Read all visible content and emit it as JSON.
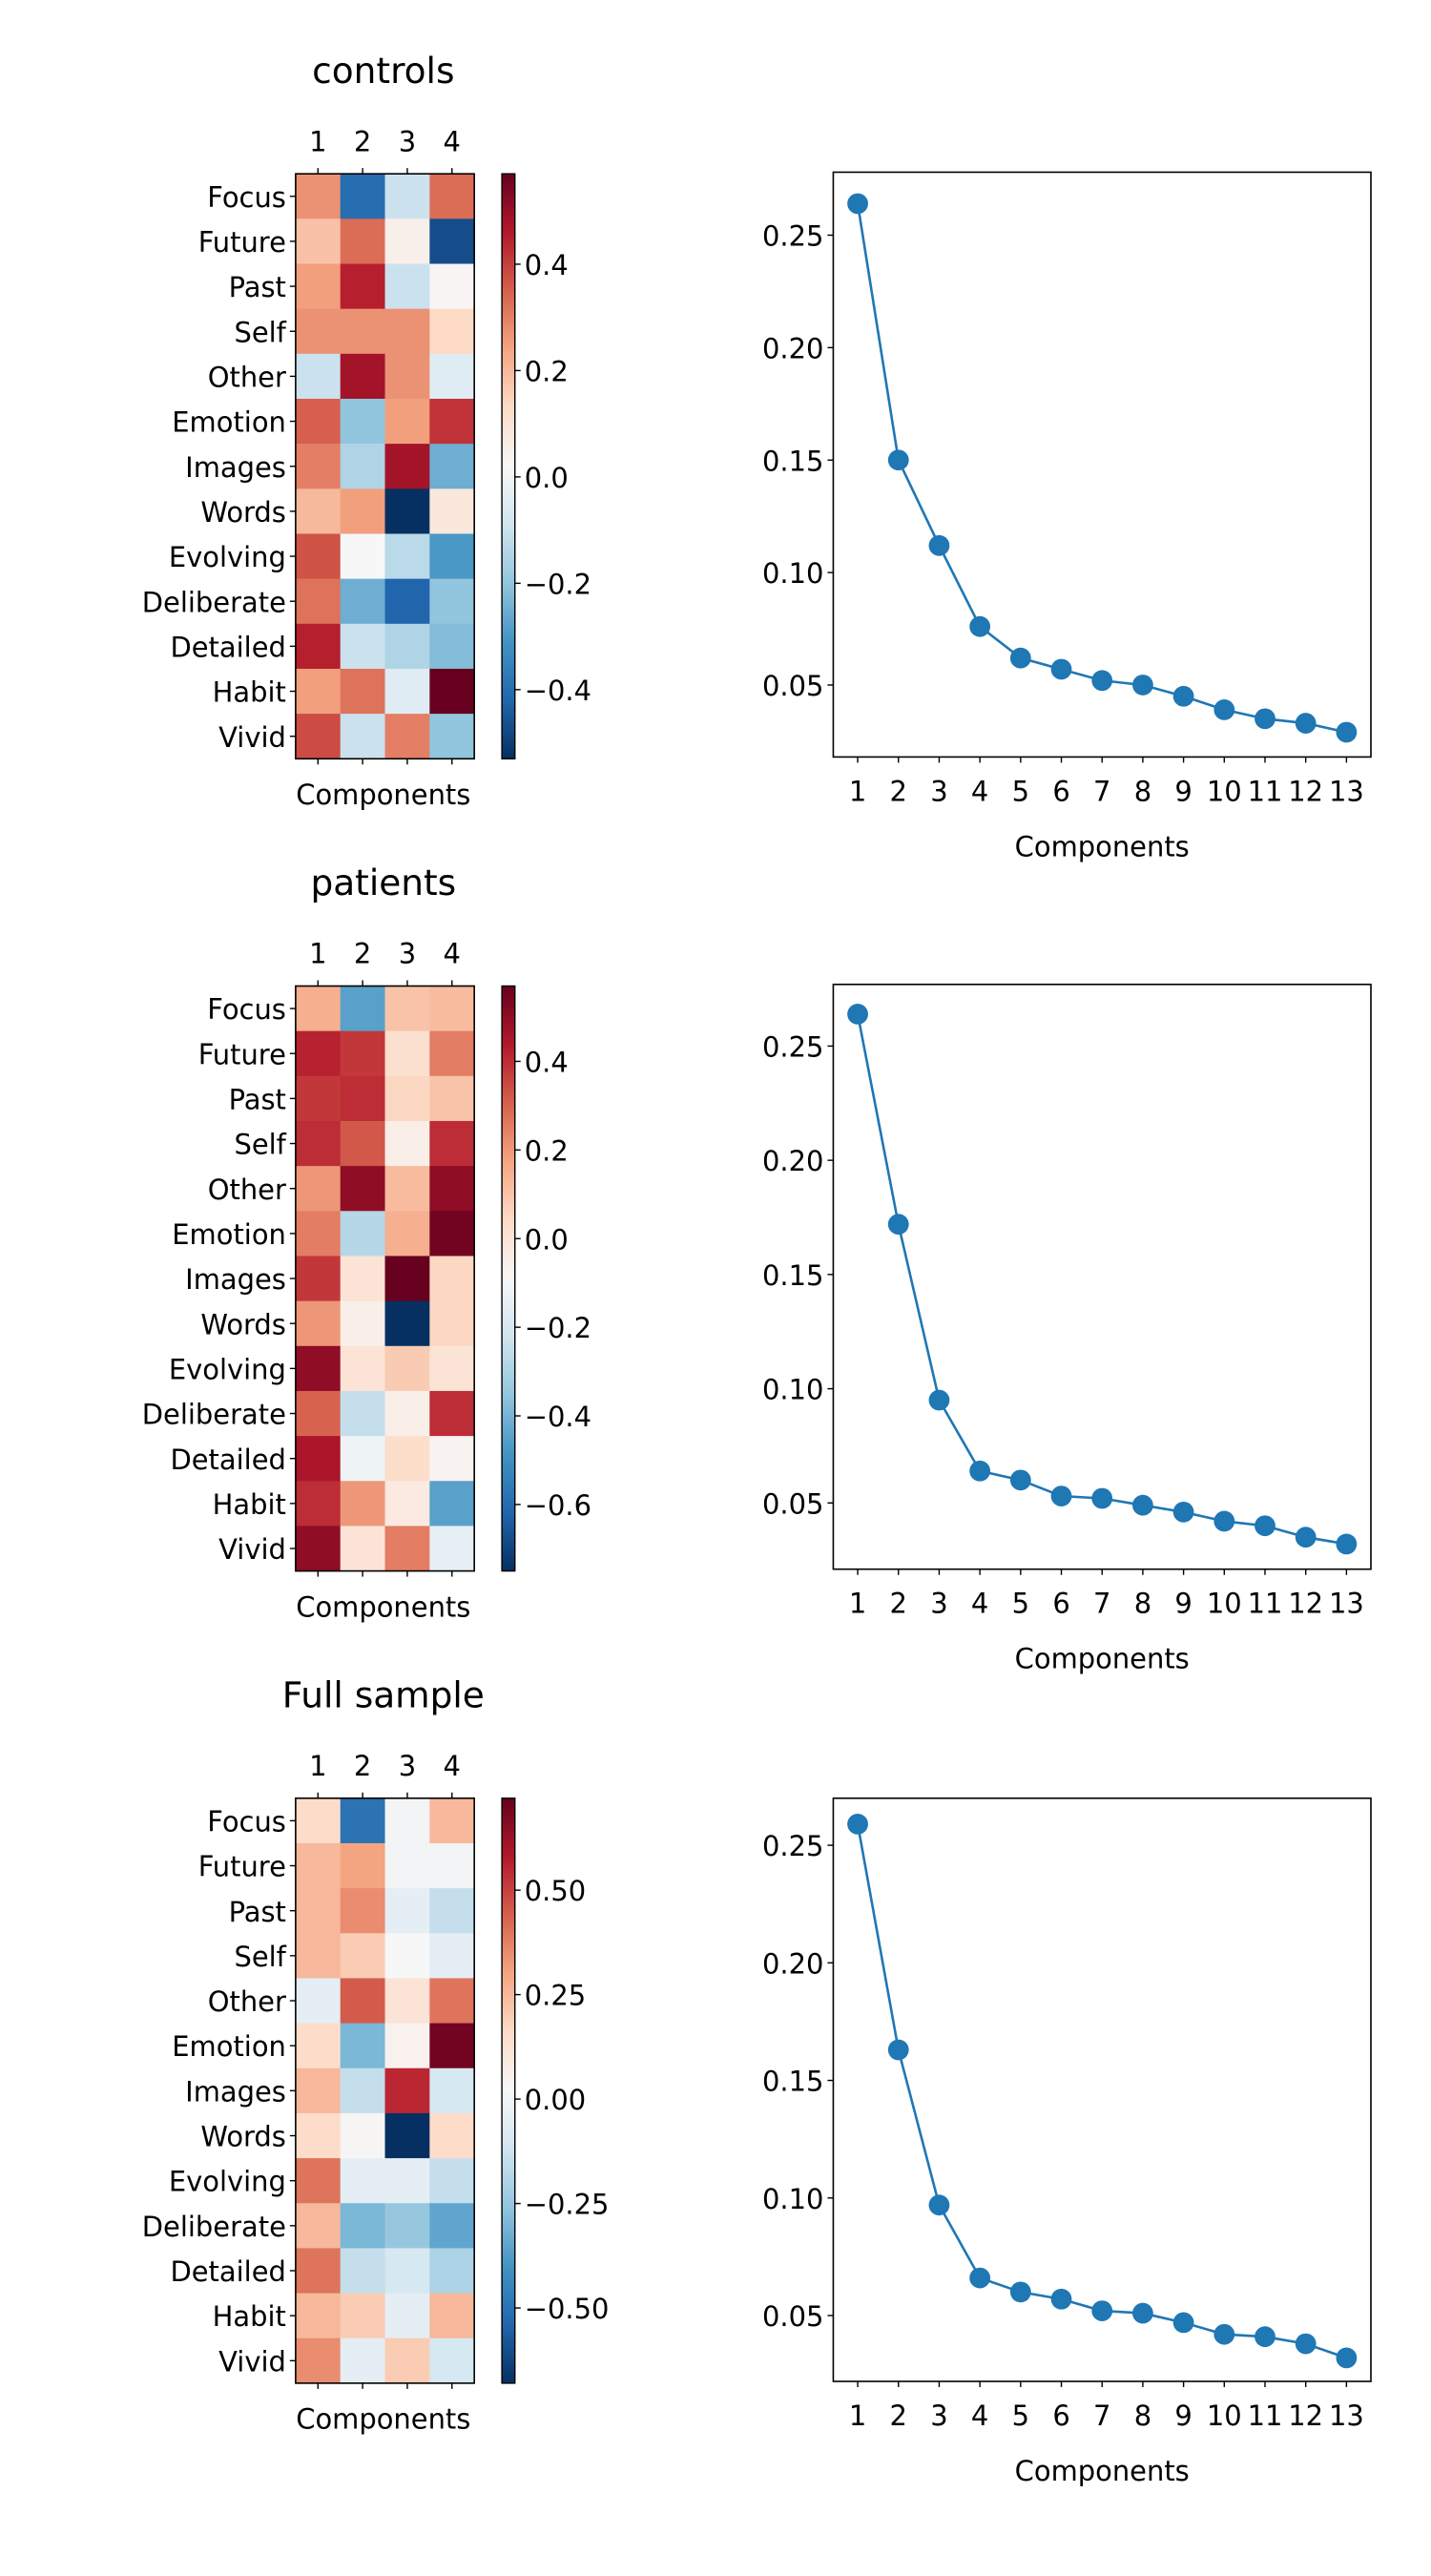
{
  "chart_data": [
    {
      "type": "heatmap",
      "title": "controls",
      "xlabel": "Components",
      "x_ticks": [
        "1",
        "2",
        "3",
        "4"
      ],
      "rows": [
        "Focus",
        "Future",
        "Past",
        "Self",
        "Other",
        "Emotion",
        "Images",
        "Words",
        "Evolving",
        "Deliberate",
        "Detailed",
        "Habit",
        "Vivid"
      ],
      "values": [
        [
          0.27,
          -0.4,
          -0.1,
          0.33
        ],
        [
          0.18,
          0.33,
          0.05,
          -0.47
        ],
        [
          0.25,
          0.45,
          -0.1,
          0.03
        ],
        [
          0.27,
          0.27,
          0.27,
          0.13
        ],
        [
          -0.1,
          0.48,
          0.27,
          -0.05
        ],
        [
          0.35,
          -0.2,
          0.25,
          0.42
        ],
        [
          0.3,
          -0.15,
          0.48,
          -0.25
        ],
        [
          0.2,
          0.25,
          -0.57,
          0.08
        ],
        [
          0.37,
          0.02,
          -0.13,
          -0.3
        ],
        [
          0.32,
          -0.25,
          -0.42,
          -0.2
        ],
        [
          0.45,
          -0.1,
          -0.15,
          -0.22
        ],
        [
          0.25,
          0.32,
          -0.05,
          0.6
        ],
        [
          0.38,
          -0.1,
          0.3,
          -0.2
        ]
      ],
      "vmin": -0.53,
      "vmax": 0.57,
      "colorbar_ticks": [
        0.4,
        0.2,
        0.0,
        -0.2,
        -0.4
      ],
      "colorbar_labels": [
        "0.4",
        "0.2",
        "0.0",
        "−0.2",
        "−0.4"
      ]
    },
    {
      "type": "line",
      "x": [
        1,
        2,
        3,
        4,
        5,
        6,
        7,
        8,
        9,
        10,
        11,
        12,
        13
      ],
      "x_ticks": [
        "1",
        "2",
        "3",
        "4",
        "5",
        "6",
        "7",
        "8",
        "9",
        "10",
        "11",
        "12",
        "13"
      ],
      "values": [
        0.264,
        0.15,
        0.112,
        0.076,
        0.062,
        0.057,
        0.052,
        0.05,
        0.045,
        0.039,
        0.035,
        0.033,
        0.029
      ],
      "ylim": [
        0.018,
        0.278
      ],
      "y_ticks": [
        0.05,
        0.1,
        0.15,
        0.2,
        0.25
      ],
      "y_tick_labels": [
        "0.05",
        "0.10",
        "0.15",
        "0.20",
        "0.25"
      ],
      "xlabel": "Components",
      "color": "#1f77b4"
    },
    {
      "type": "heatmap",
      "title": "patients",
      "xlabel": "Components",
      "x_ticks": [
        "1",
        "2",
        "3",
        "4"
      ],
      "rows": [
        "Focus",
        "Future",
        "Past",
        "Self",
        "Other",
        "Emotion",
        "Images",
        "Words",
        "Evolving",
        "Deliberate",
        "Detailed",
        "Habit",
        "Vivid"
      ],
      "values": [
        [
          0.15,
          -0.45,
          0.1,
          0.12
        ],
        [
          0.42,
          0.38,
          0.02,
          0.25
        ],
        [
          0.38,
          0.4,
          0.05,
          0.1
        ],
        [
          0.4,
          0.32,
          -0.05,
          0.4
        ],
        [
          0.2,
          0.5,
          0.12,
          0.5
        ],
        [
          0.25,
          -0.28,
          0.15,
          0.55
        ],
        [
          0.38,
          0.0,
          0.6,
          0.05
        ],
        [
          0.2,
          -0.05,
          -0.75,
          0.05
        ],
        [
          0.5,
          0.0,
          0.08,
          0.0
        ],
        [
          0.3,
          -0.25,
          -0.05,
          0.4
        ],
        [
          0.45,
          -0.12,
          0.03,
          -0.07
        ],
        [
          0.4,
          0.2,
          -0.03,
          -0.45
        ],
        [
          0.5,
          0.0,
          0.25,
          -0.15
        ]
      ],
      "vmin": -0.75,
      "vmax": 0.57,
      "colorbar_ticks": [
        0.4,
        0.2,
        0.0,
        -0.2,
        -0.4,
        -0.6
      ],
      "colorbar_labels": [
        "0.4",
        "0.2",
        "0.0",
        "−0.2",
        "−0.4",
        "−0.6"
      ]
    },
    {
      "type": "line",
      "x": [
        1,
        2,
        3,
        4,
        5,
        6,
        7,
        8,
        9,
        10,
        11,
        12,
        13
      ],
      "x_ticks": [
        "1",
        "2",
        "3",
        "4",
        "5",
        "6",
        "7",
        "8",
        "9",
        "10",
        "11",
        "12",
        "13"
      ],
      "values": [
        0.264,
        0.172,
        0.095,
        0.064,
        0.06,
        0.053,
        0.052,
        0.049,
        0.046,
        0.042,
        0.04,
        0.035,
        0.032
      ],
      "ylim": [
        0.021,
        0.277
      ],
      "y_ticks": [
        0.05,
        0.1,
        0.15,
        0.2,
        0.25
      ],
      "y_tick_labels": [
        "0.05",
        "0.10",
        "0.15",
        "0.20",
        "0.25"
      ],
      "xlabel": "Components",
      "color": "#1f77b4"
    },
    {
      "type": "heatmap",
      "title": "Full sample",
      "xlabel": "Components",
      "x_ticks": [
        "1",
        "2",
        "3",
        "4"
      ],
      "rows": [
        "Focus",
        "Future",
        "Past",
        "Self",
        "Other",
        "Emotion",
        "Images",
        "Words",
        "Evolving",
        "Deliberate",
        "Detailed",
        "Habit",
        "Vivid"
      ],
      "values": [
        [
          0.15,
          -0.5,
          0.0,
          0.25
        ],
        [
          0.25,
          0.3,
          0.0,
          0.0
        ],
        [
          0.25,
          0.35,
          -0.05,
          -0.15
        ],
        [
          0.25,
          0.2,
          0.02,
          -0.05
        ],
        [
          -0.05,
          0.45,
          0.12,
          0.4
        ],
        [
          0.15,
          -0.3,
          0.05,
          0.7
        ],
        [
          0.25,
          -0.15,
          0.55,
          -0.1
        ],
        [
          0.15,
          0.03,
          -0.68,
          0.15
        ],
        [
          0.4,
          -0.05,
          -0.05,
          -0.15
        ],
        [
          0.25,
          -0.3,
          -0.25,
          -0.35
        ],
        [
          0.4,
          -0.15,
          -0.1,
          -0.2
        ],
        [
          0.25,
          0.2,
          -0.05,
          0.25
        ],
        [
          0.35,
          -0.05,
          0.2,
          -0.1
        ]
      ],
      "vmin": -0.68,
      "vmax": 0.72,
      "colorbar_ticks": [
        0.5,
        0.25,
        0.0,
        -0.25,
        -0.5
      ],
      "colorbar_labels": [
        "0.50",
        "0.25",
        "0.00",
        "−0.25",
        "−0.50"
      ]
    },
    {
      "type": "line",
      "x": [
        1,
        2,
        3,
        4,
        5,
        6,
        7,
        8,
        9,
        10,
        11,
        12,
        13
      ],
      "x_ticks": [
        "1",
        "2",
        "3",
        "4",
        "5",
        "6",
        "7",
        "8",
        "9",
        "10",
        "11",
        "12",
        "13"
      ],
      "values": [
        0.259,
        0.163,
        0.097,
        0.066,
        0.06,
        0.057,
        0.052,
        0.051,
        0.047,
        0.042,
        0.041,
        0.038,
        0.032
      ],
      "ylim": [
        0.022,
        0.27
      ],
      "y_ticks": [
        0.05,
        0.1,
        0.15,
        0.2,
        0.25
      ],
      "y_tick_labels": [
        "0.05",
        "0.10",
        "0.15",
        "0.20",
        "0.25"
      ],
      "xlabel": "Components",
      "color": "#1f77b4"
    }
  ]
}
